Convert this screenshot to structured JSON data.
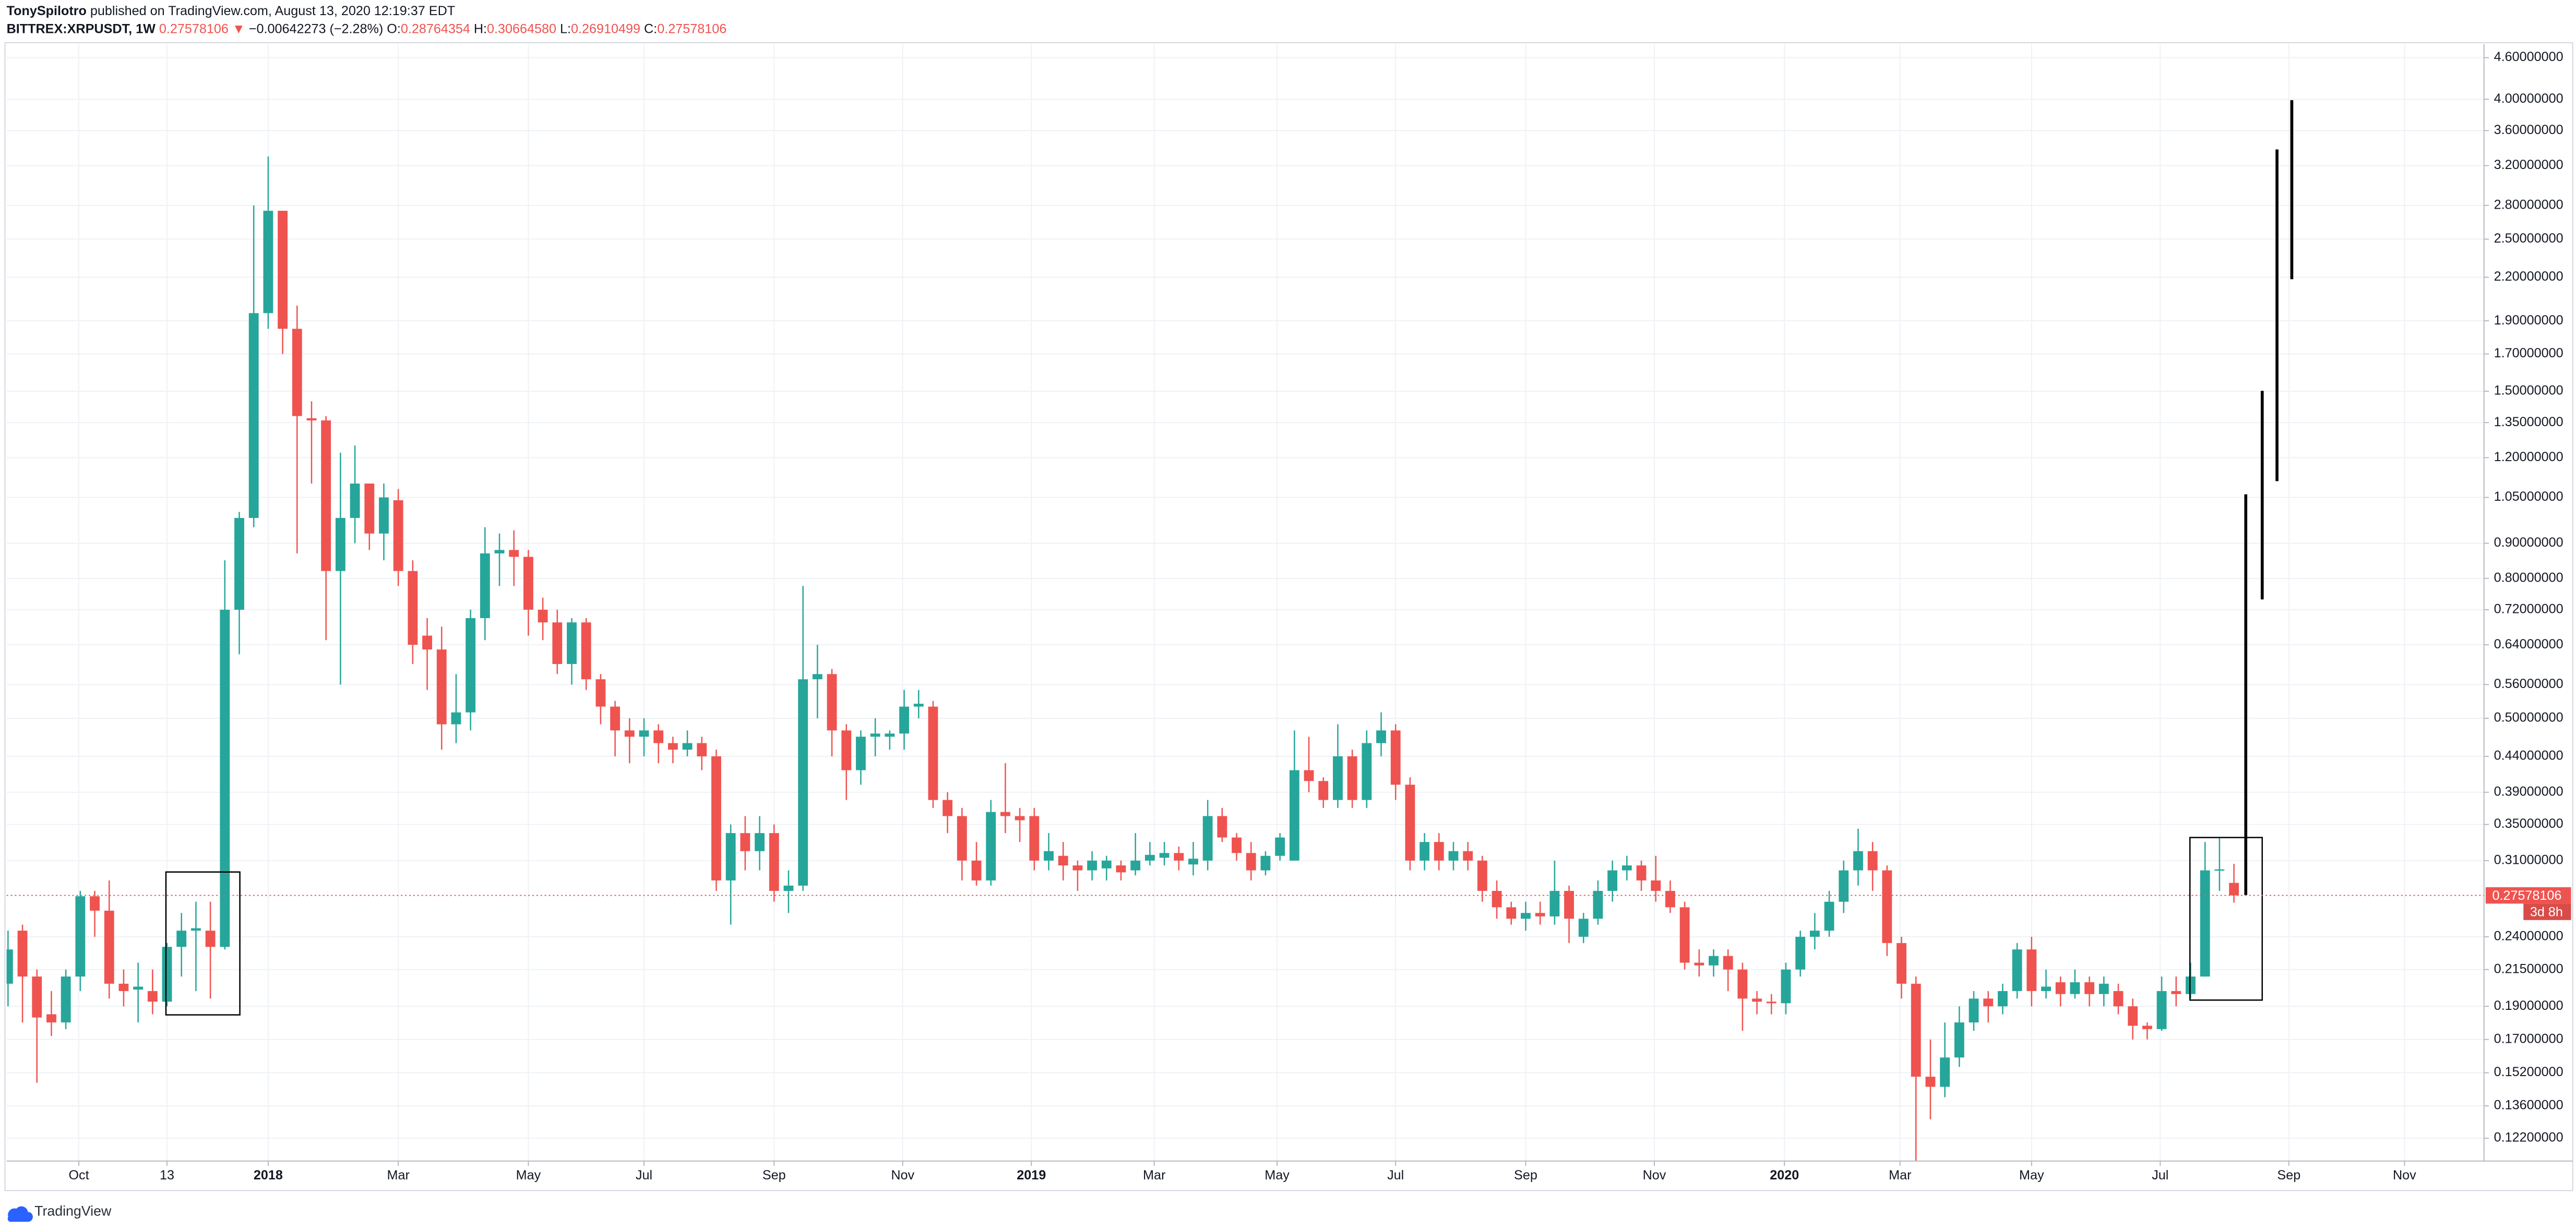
{
  "header": {
    "author": "TonySpilotro",
    "published": "published on TradingView.com, August 13, 2020 12:19:37 EDT",
    "symbol": "BITTREX:XRPUSDT, 1W",
    "last": "0.27578106",
    "change_arrow": "▼",
    "change": "−0.00642273 (−2.28%)",
    "ohlc": [
      {
        "label": "O:",
        "value": "0.28764354"
      },
      {
        "label": "H:",
        "value": "0.30664580"
      },
      {
        "label": "L:",
        "value": "0.26910499"
      },
      {
        "label": "C:",
        "value": "0.27578106"
      }
    ]
  },
  "footer": {
    "brand": "TradingView"
  },
  "chart_data": {
    "type": "candlestick",
    "log_scale": true,
    "grid": true,
    "colors": {
      "up": "#26a69a",
      "down": "#ef5350",
      "price_line": "#ef5350"
    },
    "last_price": 0.27578106,
    "countdown": "3d 8h",
    "xlim": [
      -0.1,
      171.3
    ],
    "ylim": [
      0.113,
      4.81
    ],
    "xticks": [
      {
        "value": 4.9,
        "label": "Oct"
      },
      {
        "value": 11,
        "label": "13"
      },
      {
        "value": 18,
        "label": "2018"
      },
      {
        "value": 27,
        "label": "Mar"
      },
      {
        "value": 36,
        "label": "May"
      },
      {
        "value": 44,
        "label": "Jul"
      },
      {
        "value": 53,
        "label": "Sep"
      },
      {
        "value": 61.9,
        "label": "Nov"
      },
      {
        "value": 70.8,
        "label": "2019"
      },
      {
        "value": 79.3,
        "label": "Mar"
      },
      {
        "value": 87.8,
        "label": "May"
      },
      {
        "value": 96,
        "label": "Jul"
      },
      {
        "value": 105,
        "label": "Sep"
      },
      {
        "value": 113.9,
        "label": "Nov"
      },
      {
        "value": 122.9,
        "label": "2020"
      },
      {
        "value": 130.9,
        "label": "Mar"
      },
      {
        "value": 140,
        "label": "May"
      },
      {
        "value": 148.9,
        "label": "Jul"
      },
      {
        "value": 157.8,
        "label": "Sep"
      },
      {
        "value": 165.8,
        "label": "Nov"
      }
    ],
    "yticks": [
      {
        "value": 4.6,
        "label": "4.60000000"
      },
      {
        "value": 4.0,
        "label": "4.00000000"
      },
      {
        "value": 3.6,
        "label": "3.60000000"
      },
      {
        "value": 3.2,
        "label": "3.20000000"
      },
      {
        "value": 2.8,
        "label": "2.80000000"
      },
      {
        "value": 2.5,
        "label": "2.50000000"
      },
      {
        "value": 2.2,
        "label": "2.20000000"
      },
      {
        "value": 1.9,
        "label": "1.90000000"
      },
      {
        "value": 1.7,
        "label": "1.70000000"
      },
      {
        "value": 1.5,
        "label": "1.50000000"
      },
      {
        "value": 1.35,
        "label": "1.35000000"
      },
      {
        "value": 1.2,
        "label": "1.20000000"
      },
      {
        "value": 1.05,
        "label": "1.05000000"
      },
      {
        "value": 0.9,
        "label": "0.90000000"
      },
      {
        "value": 0.8,
        "label": "0.80000000"
      },
      {
        "value": 0.72,
        "label": "0.72000000"
      },
      {
        "value": 0.64,
        "label": "0.64000000"
      },
      {
        "value": 0.56,
        "label": "0.56000000"
      },
      {
        "value": 0.5,
        "label": "0.50000000"
      },
      {
        "value": 0.44,
        "label": "0.44000000"
      },
      {
        "value": 0.39,
        "label": "0.39000000"
      },
      {
        "value": 0.35,
        "label": "0.35000000"
      },
      {
        "value": 0.31,
        "label": "0.31000000"
      },
      {
        "value": 0.24,
        "label": "0.24000000"
      },
      {
        "value": 0.215,
        "label": "0.21500000"
      },
      {
        "value": 0.19,
        "label": "0.19000000"
      },
      {
        "value": 0.17,
        "label": "0.17000000"
      },
      {
        "value": 0.152,
        "label": "0.15200000"
      },
      {
        "value": 0.136,
        "label": "0.13600000"
      },
      {
        "value": 0.122,
        "label": "0.12200000"
      }
    ],
    "open": [
      0.205,
      0.245,
      0.21,
      0.185,
      0.18,
      0.21,
      0.275,
      0.262,
      0.205,
      0.201,
      0.2,
      0.193,
      0.232,
      0.245,
      0.245,
      0.232,
      0.72,
      0.98,
      1.95,
      2.75,
      1.85,
      1.37,
      1.36,
      0.82,
      0.98,
      1.1,
      0.93,
      1.04,
      0.82,
      0.66,
      0.63,
      0.49,
      0.51,
      0.7,
      0.87,
      0.88,
      0.86,
      0.72,
      0.69,
      0.6,
      0.69,
      0.57,
      0.52,
      0.48,
      0.47,
      0.48,
      0.46,
      0.45,
      0.46,
      0.44,
      0.29,
      0.34,
      0.32,
      0.34,
      0.28,
      0.285,
      0.57,
      0.58,
      0.48,
      0.42,
      0.47,
      0.47,
      0.475,
      0.52,
      0.52,
      0.38,
      0.36,
      0.31,
      0.29,
      0.365,
      0.36,
      0.36,
      0.31,
      0.315,
      0.305,
      0.3,
      0.302,
      0.305,
      0.3,
      0.31,
      0.313,
      0.318,
      0.306,
      0.31,
      0.36,
      0.335,
      0.318,
      0.3,
      0.315,
      0.31,
      0.42,
      0.405,
      0.38,
      0.44,
      0.38,
      0.46,
      0.48,
      0.4,
      0.31,
      0.33,
      0.31,
      0.32,
      0.31,
      0.28,
      0.265,
      0.255,
      0.26,
      0.257,
      0.28,
      0.24,
      0.255,
      0.28,
      0.3,
      0.305,
      0.29,
      0.28,
      0.265,
      0.22,
      0.218,
      0.225,
      0.215,
      0.195,
      0.193,
      0.192,
      0.215,
      0.24,
      0.245,
      0.27,
      0.3,
      0.32,
      0.3,
      0.235,
      0.205,
      0.15,
      0.145,
      0.16,
      0.18,
      0.195,
      0.19,
      0.2,
      0.23,
      0.2,
      0.206,
      0.198,
      0.206,
      0.198,
      0.2,
      0.19,
      0.178,
      0.176,
      0.2,
      0.198,
      0.21,
      0.3,
      0.28764354
    ],
    "high": [
      0.245,
      0.25,
      0.215,
      0.2,
      0.215,
      0.28,
      0.28,
      0.29,
      0.215,
      0.22,
      0.215,
      0.235,
      0.26,
      0.27,
      0.27,
      0.85,
      1.0,
      2.8,
      3.3,
      2.75,
      2.0,
      1.45,
      1.38,
      1.22,
      1.25,
      1.1,
      1.1,
      1.08,
      0.85,
      0.7,
      0.68,
      0.58,
      0.72,
      0.95,
      0.93,
      0.94,
      0.88,
      0.75,
      0.72,
      0.7,
      0.7,
      0.58,
      0.53,
      0.5,
      0.5,
      0.49,
      0.47,
      0.48,
      0.47,
      0.45,
      0.35,
      0.36,
      0.36,
      0.35,
      0.3,
      0.78,
      0.64,
      0.59,
      0.49,
      0.48,
      0.5,
      0.48,
      0.55,
      0.55,
      0.53,
      0.39,
      0.37,
      0.33,
      0.38,
      0.43,
      0.37,
      0.37,
      0.34,
      0.33,
      0.31,
      0.32,
      0.315,
      0.31,
      0.34,
      0.33,
      0.33,
      0.325,
      0.33,
      0.38,
      0.37,
      0.34,
      0.33,
      0.32,
      0.34,
      0.48,
      0.47,
      0.41,
      0.49,
      0.45,
      0.48,
      0.51,
      0.49,
      0.41,
      0.34,
      0.34,
      0.33,
      0.33,
      0.315,
      0.29,
      0.27,
      0.27,
      0.27,
      0.31,
      0.285,
      0.26,
      0.29,
      0.31,
      0.315,
      0.31,
      0.315,
      0.29,
      0.27,
      0.23,
      0.23,
      0.23,
      0.22,
      0.2,
      0.198,
      0.22,
      0.245,
      0.26,
      0.28,
      0.31,
      0.345,
      0.33,
      0.305,
      0.24,
      0.21,
      0.17,
      0.18,
      0.19,
      0.2,
      0.2,
      0.205,
      0.235,
      0.24,
      0.215,
      0.21,
      0.215,
      0.21,
      0.21,
      0.205,
      0.195,
      0.18,
      0.21,
      0.21,
      0.22,
      0.33,
      0.335,
      0.3066458
    ],
    "low": [
      0.19,
      0.18,
      0.147,
      0.172,
      0.176,
      0.2,
      0.24,
      0.195,
      0.19,
      0.18,
      0.185,
      0.19,
      0.21,
      0.2,
      0.195,
      0.23,
      0.62,
      0.95,
      1.85,
      1.7,
      0.87,
      1.1,
      0.65,
      0.56,
      0.9,
      0.88,
      0.85,
      0.78,
      0.6,
      0.55,
      0.45,
      0.46,
      0.48,
      0.65,
      0.78,
      0.78,
      0.66,
      0.65,
      0.58,
      0.56,
      0.55,
      0.49,
      0.44,
      0.43,
      0.44,
      0.43,
      0.43,
      0.44,
      0.42,
      0.28,
      0.25,
      0.3,
      0.3,
      0.27,
      0.26,
      0.28,
      0.5,
      0.44,
      0.38,
      0.4,
      0.44,
      0.45,
      0.45,
      0.5,
      0.37,
      0.34,
      0.29,
      0.285,
      0.285,
      0.34,
      0.33,
      0.3,
      0.3,
      0.29,
      0.28,
      0.29,
      0.29,
      0.29,
      0.295,
      0.305,
      0.305,
      0.3,
      0.295,
      0.3,
      0.33,
      0.31,
      0.29,
      0.295,
      0.31,
      0.31,
      0.39,
      0.37,
      0.37,
      0.37,
      0.37,
      0.44,
      0.38,
      0.3,
      0.3,
      0.3,
      0.3,
      0.3,
      0.27,
      0.255,
      0.25,
      0.245,
      0.25,
      0.25,
      0.235,
      0.235,
      0.25,
      0.27,
      0.29,
      0.28,
      0.27,
      0.26,
      0.215,
      0.21,
      0.21,
      0.2,
      0.175,
      0.185,
      0.185,
      0.185,
      0.21,
      0.23,
      0.24,
      0.26,
      0.285,
      0.28,
      0.225,
      0.195,
      0.112,
      0.13,
      0.14,
      0.155,
      0.175,
      0.18,
      0.185,
      0.195,
      0.19,
      0.195,
      0.19,
      0.195,
      0.19,
      0.19,
      0.185,
      0.17,
      0.17,
      0.175,
      0.19,
      0.195,
      0.21,
      0.28,
      0.26910499
    ],
    "close": [
      0.23,
      0.21,
      0.183,
      0.18,
      0.21,
      0.275,
      0.262,
      0.205,
      0.2,
      0.203,
      0.193,
      0.232,
      0.245,
      0.247,
      0.232,
      0.72,
      0.98,
      1.95,
      2.75,
      1.85,
      1.38,
      1.36,
      0.82,
      0.98,
      1.1,
      0.93,
      1.05,
      0.82,
      0.64,
      0.63,
      0.49,
      0.51,
      0.7,
      0.87,
      0.88,
      0.86,
      0.72,
      0.69,
      0.6,
      0.69,
      0.57,
      0.52,
      0.48,
      0.47,
      0.48,
      0.46,
      0.45,
      0.46,
      0.44,
      0.29,
      0.34,
      0.32,
      0.34,
      0.28,
      0.285,
      0.57,
      0.58,
      0.48,
      0.42,
      0.47,
      0.475,
      0.475,
      0.52,
      0.525,
      0.38,
      0.36,
      0.31,
      0.29,
      0.365,
      0.36,
      0.355,
      0.31,
      0.32,
      0.305,
      0.3,
      0.31,
      0.31,
      0.298,
      0.31,
      0.316,
      0.318,
      0.31,
      0.312,
      0.36,
      0.335,
      0.318,
      0.3,
      0.315,
      0.335,
      0.42,
      0.405,
      0.38,
      0.44,
      0.38,
      0.46,
      0.48,
      0.4,
      0.31,
      0.33,
      0.31,
      0.32,
      0.31,
      0.28,
      0.265,
      0.255,
      0.26,
      0.257,
      0.28,
      0.255,
      0.255,
      0.28,
      0.3,
      0.305,
      0.29,
      0.28,
      0.265,
      0.22,
      0.218,
      0.225,
      0.215,
      0.195,
      0.193,
      0.192,
      0.215,
      0.24,
      0.245,
      0.27,
      0.3,
      0.32,
      0.3,
      0.235,
      0.205,
      0.15,
      0.145,
      0.16,
      0.18,
      0.195,
      0.19,
      0.2,
      0.23,
      0.2,
      0.203,
      0.198,
      0.206,
      0.198,
      0.205,
      0.19,
      0.178,
      0.176,
      0.2,
      0.198,
      0.21,
      0.3,
      0.301,
      0.27578106
    ]
  }
}
